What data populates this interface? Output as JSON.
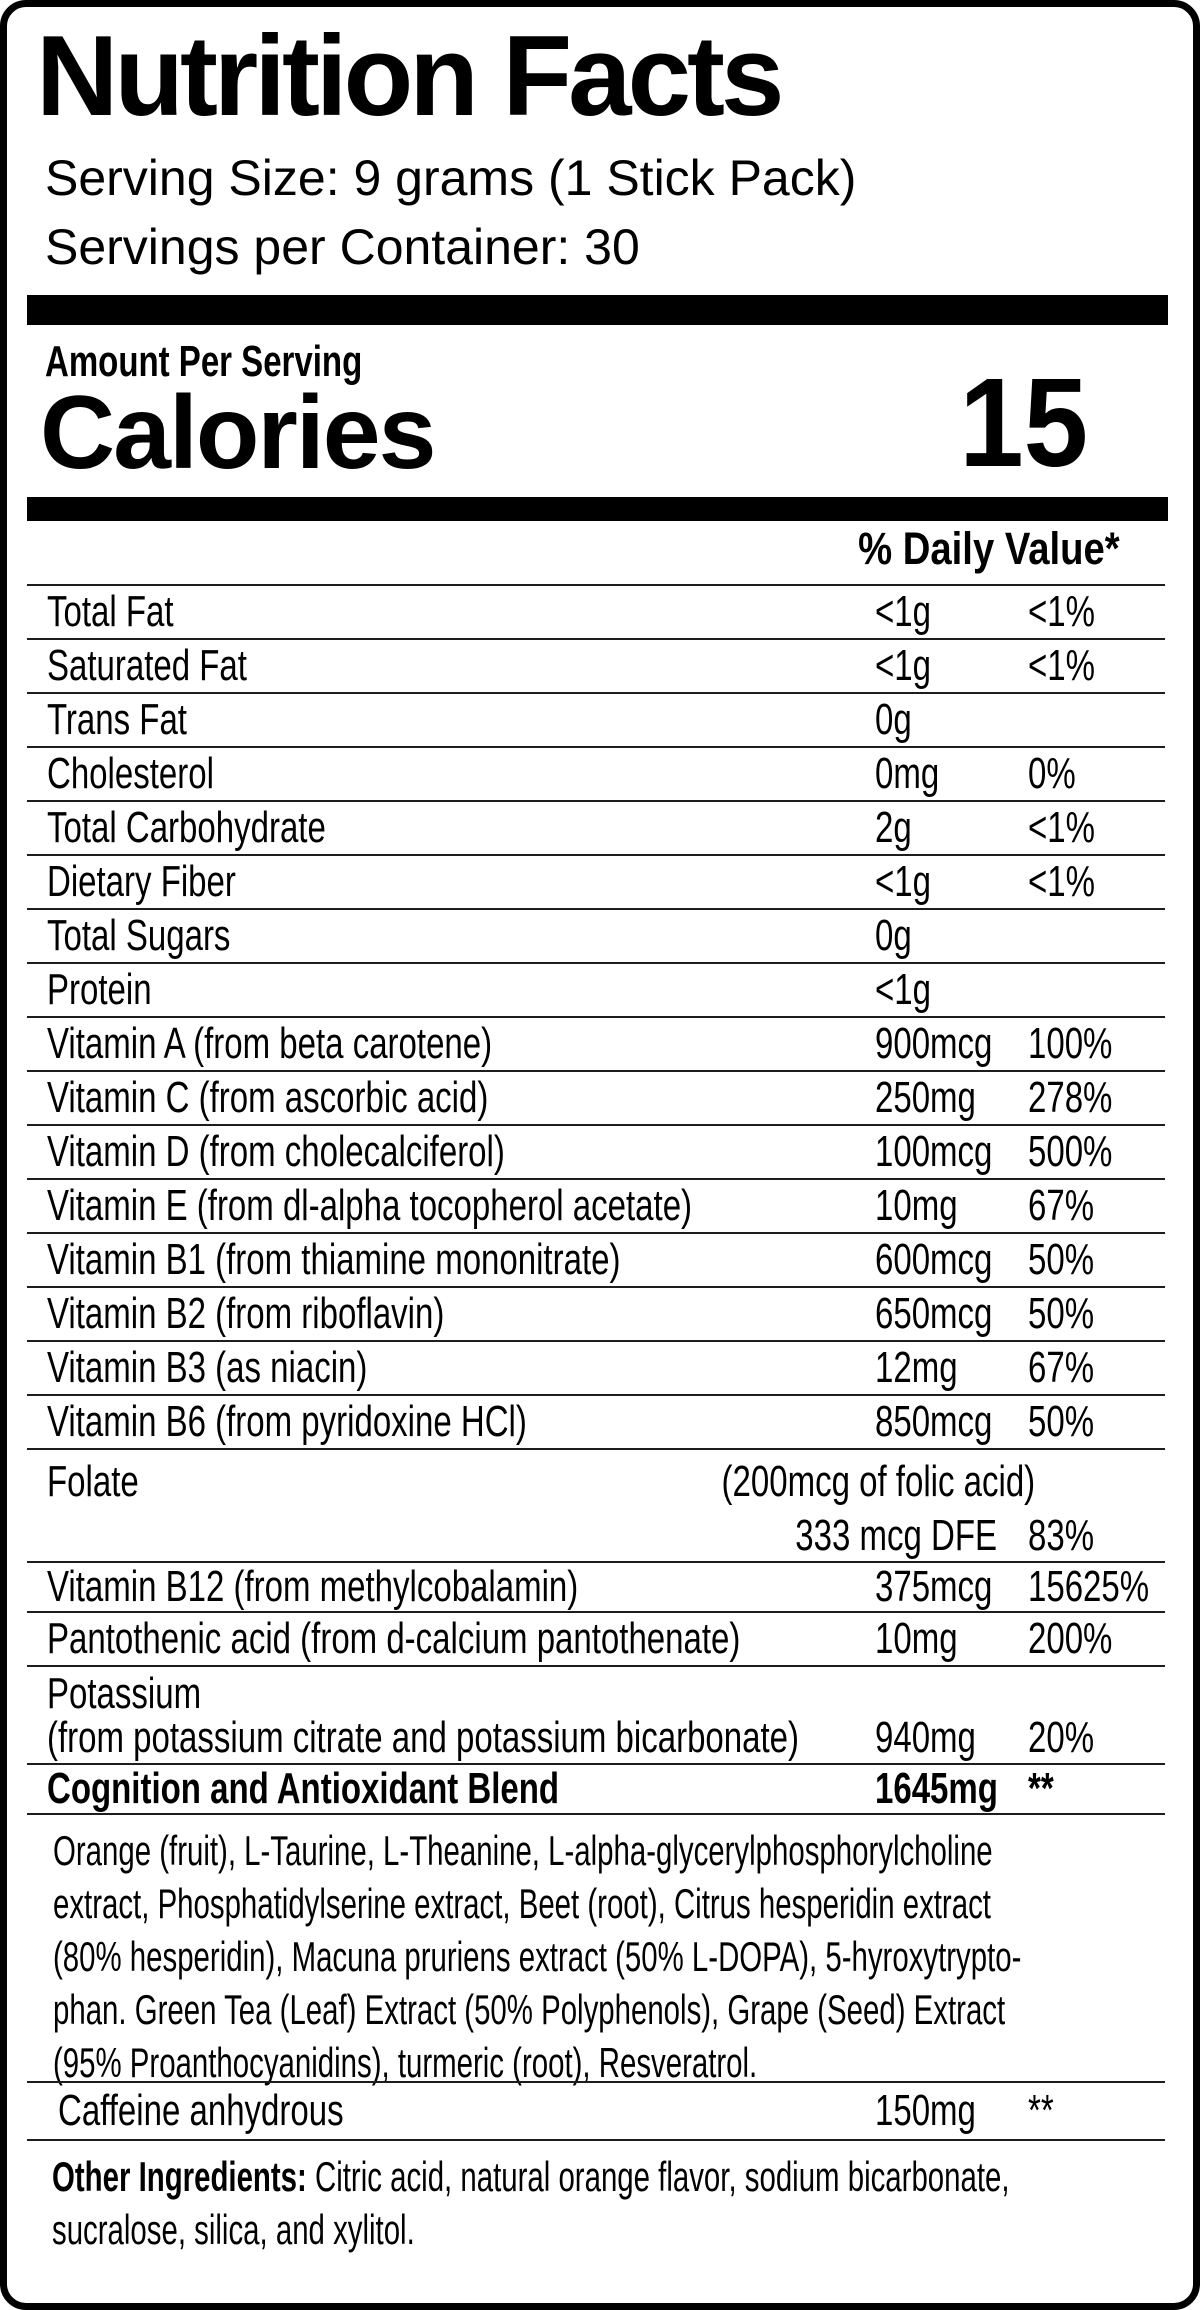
{
  "label": {
    "title": "Nutrition Facts",
    "serving_size": "Serving Size: 9 grams (1 Stick Pack)",
    "servings_per_container": "Servings per Container: 30",
    "amount_per_serving": "Amount Per Serving",
    "calories_label": "Calories",
    "calories_value": "15",
    "daily_value_header": "% Daily Value*",
    "colors": {
      "ink": "#000000",
      "paper": "#ffffff",
      "rule": "#1d1d1b"
    }
  },
  "rows": [
    {
      "label": "Total Fat",
      "amount": "<1g",
      "dv": "<1%"
    },
    {
      "label": "Saturated Fat",
      "amount": "<1g",
      "dv": "<1%"
    },
    {
      "label": "Trans Fat",
      "amount": "0g",
      "dv": ""
    },
    {
      "label": "Cholesterol",
      "amount": "0mg",
      "dv": "0%"
    },
    {
      "label": "Total Carbohydrate",
      "amount": "2g",
      "dv": "<1%"
    },
    {
      "label": "Dietary Fiber",
      "amount": "<1g",
      "dv": "<1%"
    },
    {
      "label": "Total Sugars",
      "amount": "0g",
      "dv": ""
    },
    {
      "label": "Protein",
      "amount": "<1g",
      "dv": ""
    },
    {
      "label": "Vitamin A (from beta carotene)",
      "amount": "900mcg",
      "dv": "100%"
    },
    {
      "label": "Vitamin C (from ascorbic acid)",
      "amount": "250mg",
      "dv": "278%"
    },
    {
      "label": "Vitamin D (from cholecalciferol)",
      "amount": "100mcg",
      "dv": "500%"
    },
    {
      "label": "Vitamin E (from dl-alpha tocopherol acetate)",
      "amount": "10mg",
      "dv": "67%"
    },
    {
      "label": "Vitamin B1 (from thiamine mononitrate)",
      "amount": "600mcg",
      "dv": "50%"
    },
    {
      "label": "Vitamin B2 (from riboflavin)",
      "amount": "650mcg",
      "dv": "50%"
    },
    {
      "label": "Vitamin B3 (as niacin)",
      "amount": "12mg",
      "dv": "67%"
    },
    {
      "label": "Vitamin B6 (from pyridoxine HCl)",
      "amount": "850mcg",
      "dv": "50%"
    }
  ],
  "folate": {
    "label": "Folate",
    "note": "(200mcg of folic acid)",
    "amount": "333 mcg DFE",
    "dv": "83%"
  },
  "rows2": [
    {
      "label": "Vitamin B12 (from methylcobalamin)",
      "amount": "375mcg",
      "dv": "15625%"
    },
    {
      "label": "Pantothenic acid (from d-calcium pantothenate)",
      "amount": "10mg",
      "dv": "200%"
    }
  ],
  "potassium": {
    "label_line1": "Potassium",
    "label_line2": "(from potassium citrate and potassium bicarbonate)",
    "amount": "940mg",
    "dv": "20%"
  },
  "blend": {
    "label": "Cognition and Antioxidant Blend",
    "amount": "1645mg",
    "dv": "**"
  },
  "blend_description_lines": [
    "Orange (fruit), L-Taurine, L-Theanine, L-alpha-glycerylphosphorylcholine",
    "extract, Phosphatidylserine extract, Beet (root), Citrus hesperidin extract",
    "(80% hesperidin), Macuna pruriens extract (50% L-DOPA), 5-hyroxytrypto-",
    "phan. Green Tea (Leaf) Extract (50% Polyphenols), Grape (Seed) Extract",
    "(95% Proanthocyanidins), turmeric (root), Resveratrol."
  ],
  "caffeine": {
    "label": "Caffeine anhydrous",
    "amount": "150mg",
    "dv": "**"
  },
  "other_ingredients": {
    "prefix": "Other Ingredients:",
    "line1_rest": " Citric acid, natural orange flavor, sodium bicarbonate,",
    "line2": "sucralose, silica, and xylitol."
  }
}
